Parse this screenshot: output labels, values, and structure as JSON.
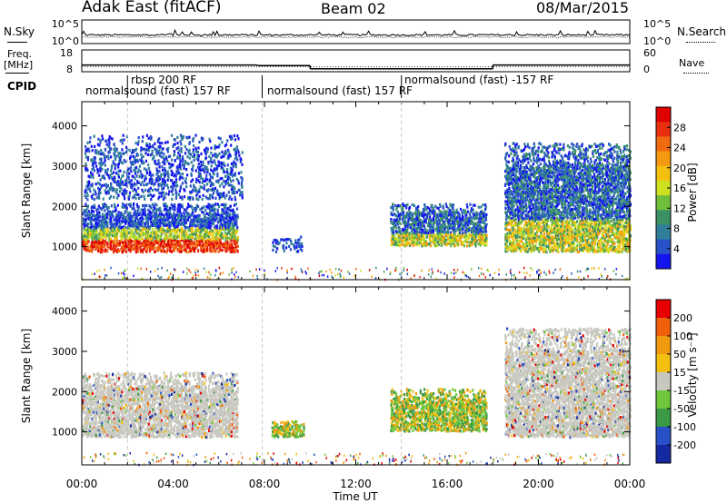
{
  "header": {
    "station": "Adak East (fitACF)",
    "beam": "Beam 02",
    "date": "08/Mar/2015"
  },
  "left_labels": {
    "nsky": "N.Sky",
    "freq_line1": "Freq.",
    "freq_line2": "[MHz]",
    "cpid": "CPID"
  },
  "right_labels": {
    "nsearch": "N.Search",
    "nave": "Nave"
  },
  "chart_data": [
    {
      "type": "line",
      "panel": "noise",
      "left_axis": {
        "ticks": [
          "10^5",
          "10^0"
        ]
      },
      "right_axis": {
        "ticks": [
          "10^5",
          "10^0"
        ]
      },
      "series": [
        {
          "name": "N.Sky"
        },
        {
          "name": "N.Search"
        }
      ]
    },
    {
      "type": "line",
      "panel": "frequency",
      "left_axis": {
        "ticks": [
          "18",
          "8"
        ]
      },
      "right_axis": {
        "ticks": [
          "60",
          "0"
        ]
      },
      "series": [
        {
          "name": "Freq.",
          "segments": [
            {
              "x": [
                0.0,
                7.7
              ],
              "y": 10.9
            },
            {
              "x": [
                7.7,
                10.0
              ],
              "y": 10.6
            },
            {
              "x": [
                10.0,
                18.0
              ],
              "y": 9.0
            },
            {
              "x": [
                18.0,
                24.0
              ],
              "y": 10.9
            }
          ]
        },
        {
          "name": "Nave",
          "y": 10
        }
      ]
    },
    {
      "type": "table",
      "panel": "cpid",
      "entries": [
        {
          "start": 0.1,
          "label": "normalsound (fast) 157 RF"
        },
        {
          "start": 2.0,
          "label": "rbsp 200 RF"
        },
        {
          "start": 7.9,
          "label": "normalsound (fast) 157 RF"
        },
        {
          "start": 14.0,
          "label": "normalsound (fast) -157 RF"
        }
      ],
      "boundaries": [
        2.0,
        7.9,
        14.0
      ]
    },
    {
      "type": "heatmap",
      "panel": "power",
      "ylabel": "Slant Range [km]",
      "yticks": [
        1000,
        2000,
        3000,
        4000
      ],
      "ylim": [
        180,
        4600
      ],
      "xlim": [
        0,
        24
      ],
      "colorbar": {
        "label": "Power [dB]",
        "ticks": [
          4,
          8,
          12,
          16,
          20,
          24,
          28
        ],
        "range": [
          0,
          32
        ]
      },
      "regions": [
        {
          "x": [
            0.0,
            6.8
          ],
          "y": [
            900,
            2100
          ],
          "level": "high"
        },
        {
          "x": [
            0.1,
            7.0
          ],
          "y": [
            2200,
            3800
          ],
          "level": "low"
        },
        {
          "x": [
            8.3,
            9.7
          ],
          "y": [
            900,
            1300
          ],
          "level": "low"
        },
        {
          "x": [
            13.5,
            17.7
          ],
          "y": [
            1050,
            2100
          ],
          "level": "medium"
        },
        {
          "x": [
            18.5,
            24.0
          ],
          "y": [
            900,
            3600
          ],
          "level": "medium"
        }
      ]
    },
    {
      "type": "heatmap",
      "panel": "velocity",
      "ylabel": "Slant Range [km]",
      "xlabel": "Time UT",
      "yticks": [
        1000,
        2000,
        3000,
        4000
      ],
      "xticks": [
        "00:00",
        "04:00",
        "08:00",
        "12:00",
        "16:00",
        "20:00",
        "00:00"
      ],
      "ylim": [
        180,
        4600
      ],
      "xlim": [
        0,
        24
      ],
      "colorbar": {
        "label": "Velocity [m s⁻¹]",
        "ticks": [
          200,
          100,
          50,
          15,
          -15,
          -50,
          -100,
          -200
        ]
      },
      "regions": [
        {
          "x": [
            0.0,
            6.8
          ],
          "y": [
            900,
            2500
          ],
          "level": "ground"
        },
        {
          "x": [
            8.3,
            9.7
          ],
          "y": [
            900,
            1300
          ],
          "level": "positive"
        },
        {
          "x": [
            13.5,
            17.7
          ],
          "y": [
            1050,
            2100
          ],
          "level": "positive"
        },
        {
          "x": [
            18.5,
            24.0
          ],
          "y": [
            900,
            3600
          ],
          "level": "ground"
        }
      ]
    }
  ],
  "colors": {
    "power_scale": [
      "#1414f0",
      "#2850c8",
      "#2f7f9a",
      "#3c9164",
      "#6fbf3c",
      "#cfe020",
      "#f4c010",
      "#f49a10",
      "#f06a10",
      "#e83010",
      "#e00000"
    ],
    "velocity_scale": [
      "#e80000",
      "#f0600a",
      "#f09a10",
      "#f4c010",
      "#c8c8c0",
      "#6fc83c",
      "#3c9a46",
      "#2850c8",
      "#1428a0"
    ]
  }
}
